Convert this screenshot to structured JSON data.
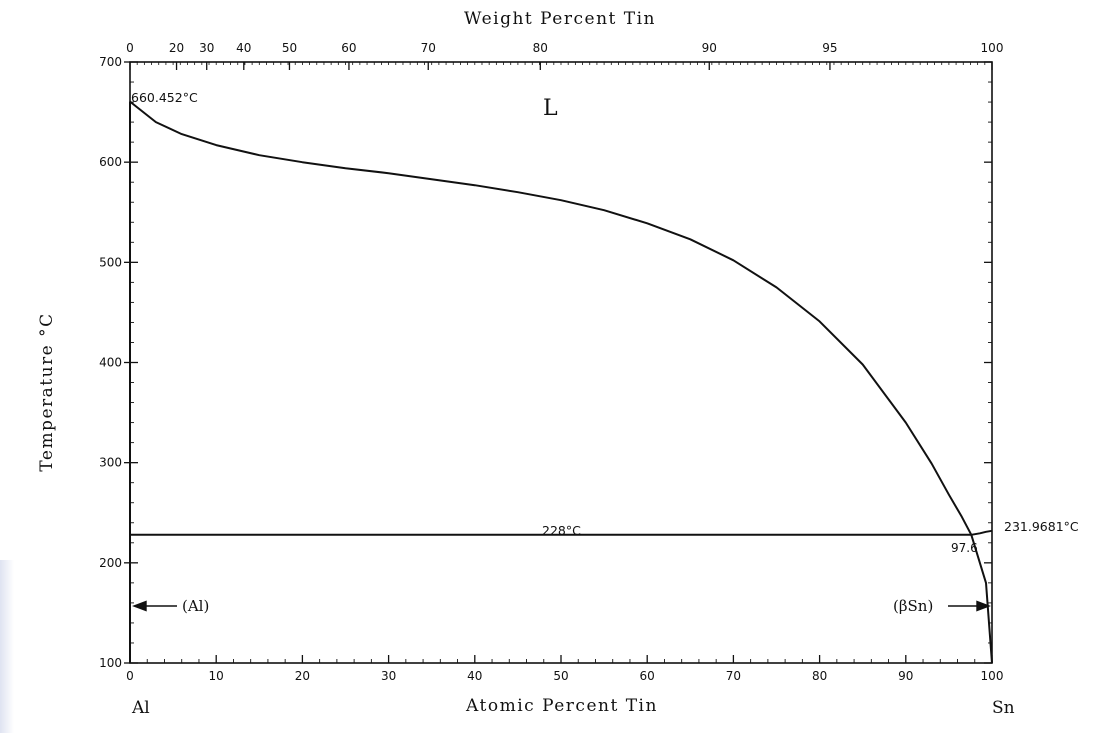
{
  "chart_data": {
    "type": "line",
    "title_top_axis": "Weight Percent Tin",
    "xlabel": "Atomic Percent Tin",
    "ylabel": "Temperature °C",
    "xlim": [
      0,
      100
    ],
    "ylim": [
      100,
      700
    ],
    "x_ticks": [
      "0",
      "10",
      "20",
      "30",
      "40",
      "50",
      "60",
      "70",
      "80",
      "90",
      "100"
    ],
    "y_ticks": [
      "100",
      "200",
      "300",
      "400",
      "500",
      "600",
      "700"
    ],
    "top_ticks": [
      {
        "wt": 0,
        "at": 0,
        "label": "0"
      },
      {
        "wt": 20,
        "at": 5.4,
        "label": "20"
      },
      {
        "wt": 30,
        "at": 8.9,
        "label": "30"
      },
      {
        "wt": 40,
        "at": 13.2,
        "label": "40"
      },
      {
        "wt": 50,
        "at": 18.5,
        "label": "50"
      },
      {
        "wt": 60,
        "at": 25.4,
        "label": "60"
      },
      {
        "wt": 70,
        "at": 34.6,
        "label": "70"
      },
      {
        "wt": 80,
        "at": 47.6,
        "label": "80"
      },
      {
        "wt": 90,
        "at": 67.2,
        "label": "90"
      },
      {
        "wt": 95,
        "at": 81.2,
        "label": "95"
      },
      {
        "wt": 100,
        "at": 100,
        "label": "100"
      }
    ],
    "series": [
      {
        "x": [
          0,
          3,
          6,
          10,
          15,
          20,
          25,
          30,
          35,
          40,
          45,
          50,
          55,
          60,
          65,
          70,
          75,
          80,
          85,
          90,
          93,
          95,
          96.5,
          97.6
        ],
        "y": [
          660.452,
          640,
          628,
          617,
          607,
          600,
          594,
          589,
          583,
          577,
          570,
          562,
          552,
          539,
          523,
          502,
          475,
          441,
          398,
          340,
          299,
          268,
          246,
          228
        ]
      },
      {
        "x": [
          0,
          97.6,
          98.6,
          99.3,
          100
        ],
        "y": [
          228,
          228,
          229.5,
          231,
          231.9681
        ]
      },
      {
        "x": [
          0,
          0,
          0
        ],
        "y": [
          660.452,
          228,
          100
        ]
      },
      {
        "x": [
          97.6,
          99.3,
          100
        ],
        "y": [
          228,
          180,
          100
        ]
      }
    ],
    "annotations": {
      "liquid": "L",
      "al_melting": "660.452°C",
      "eutectic_temp": "228°C",
      "sn_melting": "231.9681°C",
      "eutectic_comp": "97.6",
      "al_phase": "(Al)",
      "sn_phase": "(βSn)",
      "left_element": "Al",
      "right_element": "Sn"
    },
    "grid": false
  }
}
